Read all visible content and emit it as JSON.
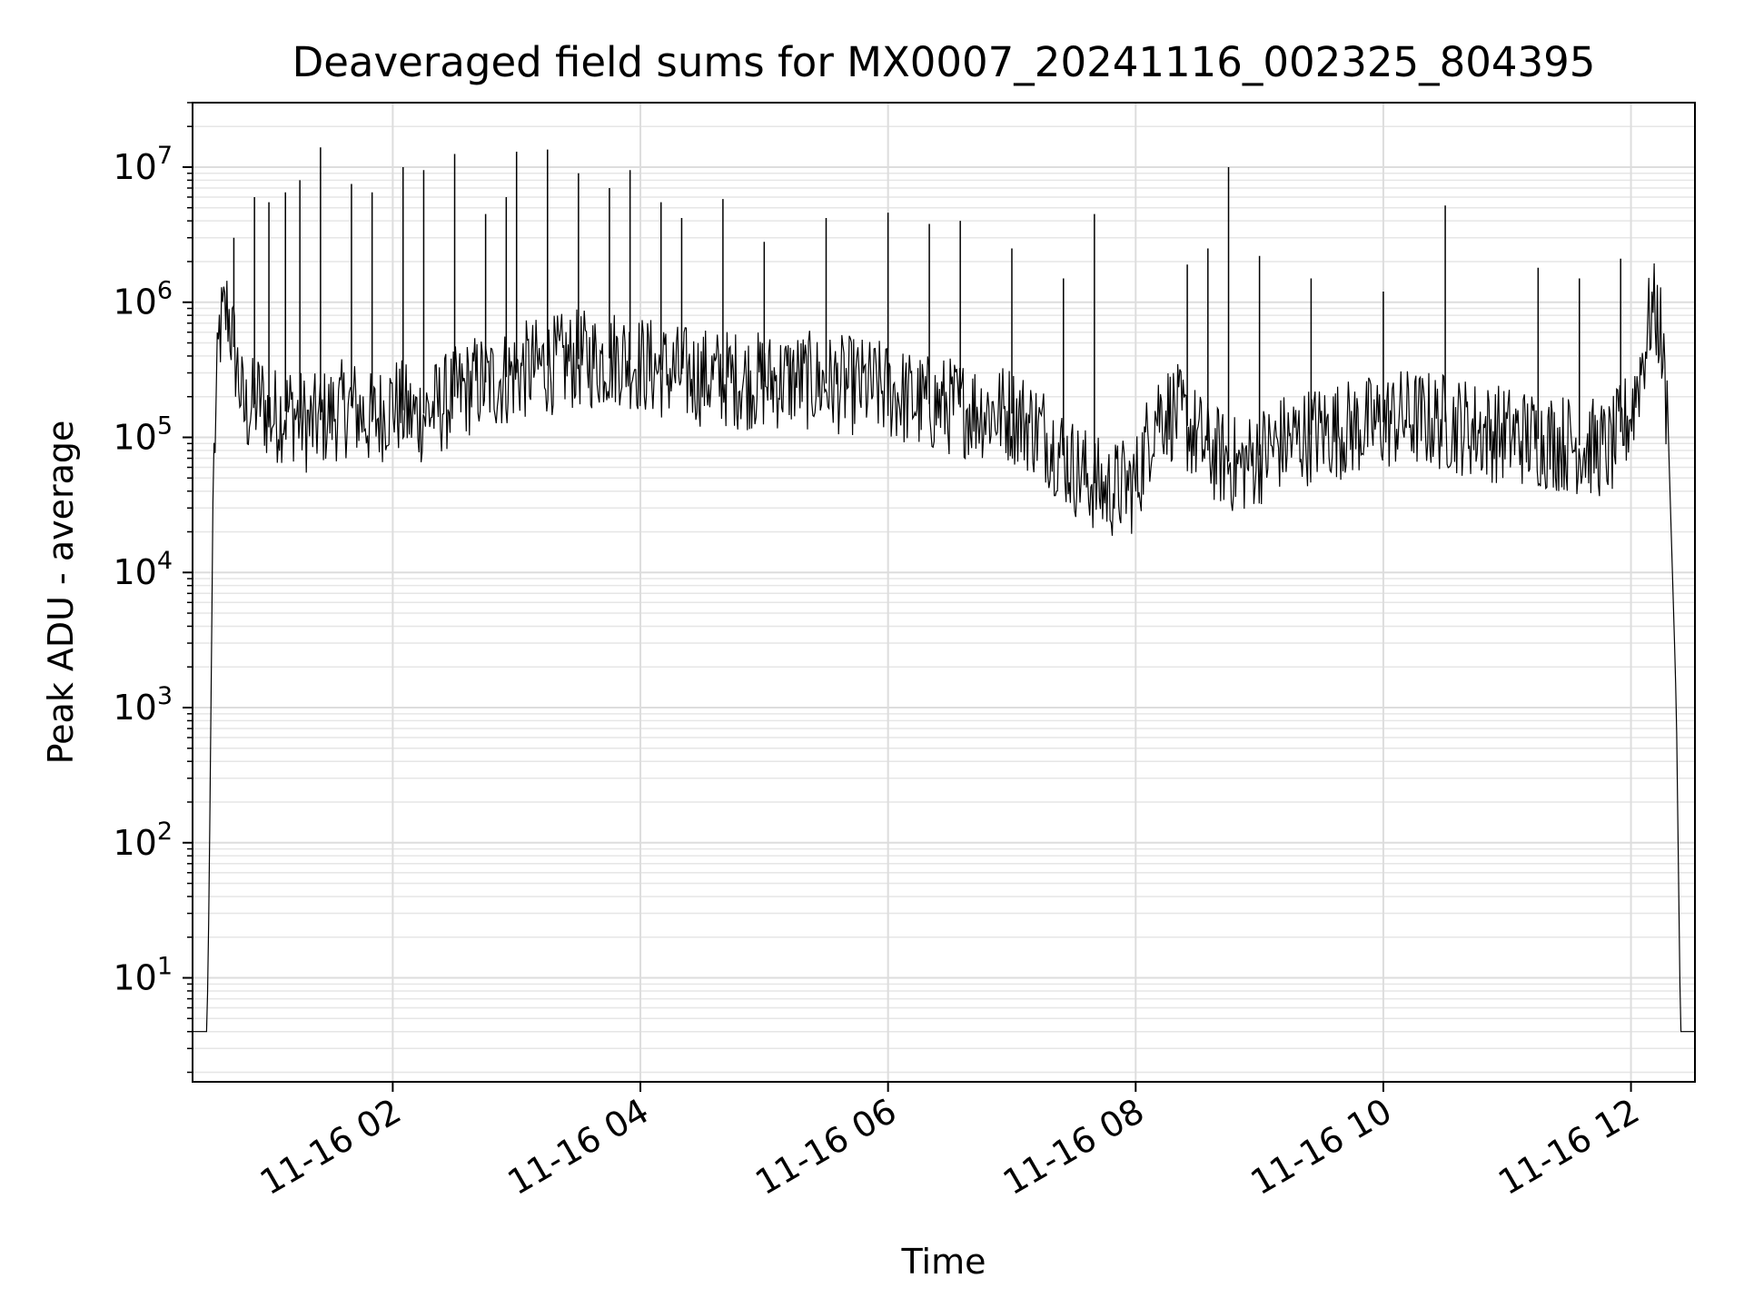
{
  "chart_data": {
    "type": "line",
    "title": "Deaveraged field sums for MX0007_20241116_002325_804395",
    "xlabel": "Time",
    "ylabel": "Peak ADU - average",
    "yscale": "log",
    "ylim": [
      1.7,
      30000000
    ],
    "xlim": [
      "2024-11-16 00:23",
      "2024-11-16 12:31"
    ],
    "grid": true,
    "x_ticks": [
      {
        "time": "2024-11-16 02:00",
        "label": "11-16 02"
      },
      {
        "time": "2024-11-16 04:00",
        "label": "11-16 04"
      },
      {
        "time": "2024-11-16 06:00",
        "label": "11-16 06"
      },
      {
        "time": "2024-11-16 08:00",
        "label": "11-16 08"
      },
      {
        "time": "2024-11-16 10:00",
        "label": "11-16 10"
      },
      {
        "time": "2024-11-16 12:00",
        "label": "11-16 12"
      }
    ],
    "y_ticks": [
      {
        "value": 10,
        "base": "10",
        "exp": "1"
      },
      {
        "value": 100,
        "base": "10",
        "exp": "2"
      },
      {
        "value": 1000,
        "base": "10",
        "exp": "3"
      },
      {
        "value": 10000,
        "base": "10",
        "exp": "4"
      },
      {
        "value": 100000,
        "base": "10",
        "exp": "5"
      },
      {
        "value": 1000000,
        "base": "10",
        "exp": "6"
      },
      {
        "value": 10000000,
        "base": "10",
        "exp": "7"
      }
    ],
    "series": [
      {
        "line_color": "#000000",
        "x": [
          "2024-11-16 00:23",
          "2024-11-16 00:30",
          "2024-11-16 00:31",
          "2024-11-16 00:33",
          "2024-11-16 00:36",
          "2024-11-16 00:40",
          "2024-11-16 00:45",
          "2024-11-16 00:48",
          "2024-11-16 00:52",
          "2024-11-16 00:56",
          "2024-11-16 01:00",
          "2024-11-16 01:10",
          "2024-11-16 01:20",
          "2024-11-16 01:30",
          "2024-11-16 01:40",
          "2024-11-16 01:50",
          "2024-11-16 02:00",
          "2024-11-16 02:10",
          "2024-11-16 02:20",
          "2024-11-16 02:30",
          "2024-11-16 02:40",
          "2024-11-16 02:50",
          "2024-11-16 03:00",
          "2024-11-16 03:10",
          "2024-11-16 03:20",
          "2024-11-16 03:30",
          "2024-11-16 03:40",
          "2024-11-16 03:50",
          "2024-11-16 04:00",
          "2024-11-16 04:15",
          "2024-11-16 04:30",
          "2024-11-16 04:45",
          "2024-11-16 05:00",
          "2024-11-16 05:15",
          "2024-11-16 05:30",
          "2024-11-16 05:45",
          "2024-11-16 06:00",
          "2024-11-16 06:15",
          "2024-11-16 06:30",
          "2024-11-16 06:45",
          "2024-11-16 07:00",
          "2024-11-16 07:15",
          "2024-11-16 07:30",
          "2024-11-16 07:45",
          "2024-11-16 08:00",
          "2024-11-16 08:10",
          "2024-11-16 08:20",
          "2024-11-16 08:35",
          "2024-11-16 08:50",
          "2024-11-16 09:10",
          "2024-11-16 09:30",
          "2024-11-16 09:50",
          "2024-11-16 10:10",
          "2024-11-16 10:30",
          "2024-11-16 10:50",
          "2024-11-16 11:10",
          "2024-11-16 11:30",
          "2024-11-16 11:50",
          "2024-11-16 12:00",
          "2024-11-16 12:06",
          "2024-11-16 12:10",
          "2024-11-16 12:14",
          "2024-11-16 12:18",
          "2024-11-16 12:22",
          "2024-11-16 12:24",
          "2024-11-16 12:31"
        ],
        "y": [
          4,
          4,
          40,
          50000,
          600000,
          900000,
          300000,
          150000,
          170000,
          200000,
          140000,
          160000,
          120000,
          150000,
          170000,
          130000,
          180000,
          140000,
          160000,
          200000,
          250000,
          260000,
          300000,
          330000,
          350000,
          380000,
          370000,
          400000,
          350000,
          300000,
          280000,
          270000,
          260000,
          270000,
          250000,
          240000,
          220000,
          180000,
          170000,
          160000,
          150000,
          110000,
          60000,
          40000,
          45000,
          160000,
          150000,
          80000,
          60000,
          90000,
          110000,
          120000,
          140000,
          130000,
          110000,
          100000,
          90000,
          80000,
          150000,
          400000,
          900000,
          700000,
          120000,
          1000,
          4,
          4
        ],
        "spikes": [
          {
            "x": "2024-11-16 00:43",
            "y": 3000000
          },
          {
            "x": "2024-11-16 00:53",
            "y": 6000000
          },
          {
            "x": "2024-11-16 01:00",
            "y": 5500000
          },
          {
            "x": "2024-11-16 01:08",
            "y": 6500000
          },
          {
            "x": "2024-11-16 01:15",
            "y": 8000000
          },
          {
            "x": "2024-11-16 01:25",
            "y": 14000000
          },
          {
            "x": "2024-11-16 01:40",
            "y": 7500000
          },
          {
            "x": "2024-11-16 01:50",
            "y": 6500000
          },
          {
            "x": "2024-11-16 02:05",
            "y": 10000000
          },
          {
            "x": "2024-11-16 02:15",
            "y": 9500000
          },
          {
            "x": "2024-11-16 02:30",
            "y": 12500000
          },
          {
            "x": "2024-11-16 02:45",
            "y": 4500000
          },
          {
            "x": "2024-11-16 02:55",
            "y": 6000000
          },
          {
            "x": "2024-11-16 03:00",
            "y": 13000000
          },
          {
            "x": "2024-11-16 03:15",
            "y": 13500000
          },
          {
            "x": "2024-11-16 03:30",
            "y": 9000000
          },
          {
            "x": "2024-11-16 03:45",
            "y": 7000000
          },
          {
            "x": "2024-11-16 03:55",
            "y": 9500000
          },
          {
            "x": "2024-11-16 04:10",
            "y": 5500000
          },
          {
            "x": "2024-11-16 04:20",
            "y": 4200000
          },
          {
            "x": "2024-11-16 04:40",
            "y": 5800000
          },
          {
            "x": "2024-11-16 05:00",
            "y": 2800000
          },
          {
            "x": "2024-11-16 05:30",
            "y": 4200000
          },
          {
            "x": "2024-11-16 06:00",
            "y": 4600000
          },
          {
            "x": "2024-11-16 06:20",
            "y": 3800000
          },
          {
            "x": "2024-11-16 06:35",
            "y": 4000000
          },
          {
            "x": "2024-11-16 07:00",
            "y": 2500000
          },
          {
            "x": "2024-11-16 07:25",
            "y": 1500000
          },
          {
            "x": "2024-11-16 07:40",
            "y": 4500000
          },
          {
            "x": "2024-11-16 08:25",
            "y": 1900000
          },
          {
            "x": "2024-11-16 08:35",
            "y": 2500000
          },
          {
            "x": "2024-11-16 08:45",
            "y": 10000000
          },
          {
            "x": "2024-11-16 09:00",
            "y": 2200000
          },
          {
            "x": "2024-11-16 09:25",
            "y": 1500000
          },
          {
            "x": "2024-11-16 10:00",
            "y": 1200000
          },
          {
            "x": "2024-11-16 10:30",
            "y": 5200000
          },
          {
            "x": "2024-11-16 11:15",
            "y": 1800000
          },
          {
            "x": "2024-11-16 11:35",
            "y": 1500000
          },
          {
            "x": "2024-11-16 11:55",
            "y": 2100000
          }
        ]
      }
    ]
  }
}
